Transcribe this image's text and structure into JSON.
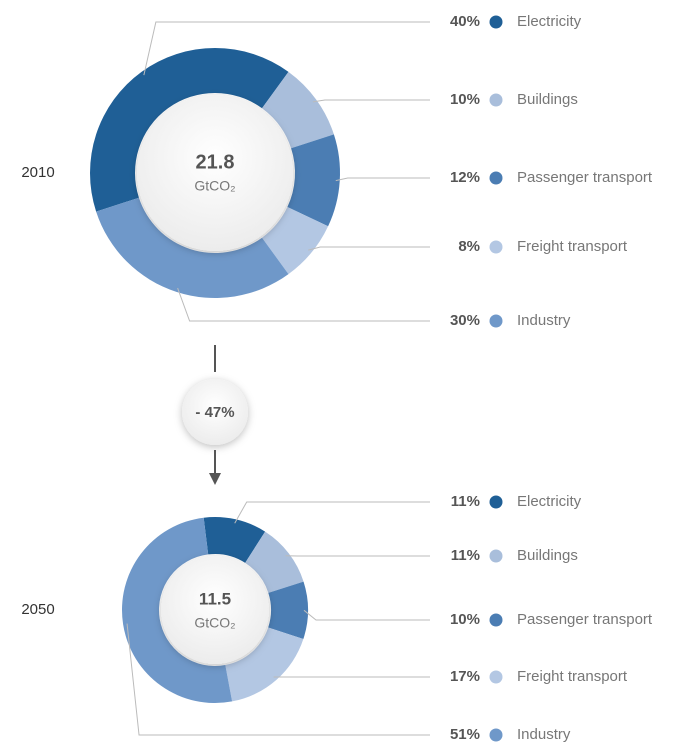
{
  "chart_data": [
    {
      "type": "donut",
      "year": "2010",
      "total": 21.8,
      "unit": "GtCO₂",
      "categories": [
        "Electricity",
        "Buildings",
        "Passenger transport",
        "Freight transport",
        "Industry"
      ],
      "values": [
        40,
        10,
        12,
        8,
        30
      ],
      "value_labels": [
        "40%",
        "10%",
        "12%",
        "8%",
        "30%"
      ],
      "colors": [
        "#1f5f96",
        "#a9bedb",
        "#4b7db3",
        "#b3c7e3",
        "#6f98c9"
      ]
    },
    {
      "type": "donut",
      "year": "2050",
      "total": 11.5,
      "unit": "GtCO₂",
      "categories": [
        "Electricity",
        "Buildings",
        "Passenger transport",
        "Freight transport",
        "Industry"
      ],
      "values": [
        11,
        11,
        10,
        17,
        51
      ],
      "value_labels": [
        "11%",
        "11%",
        "10%",
        "17%",
        "51%"
      ],
      "colors": [
        "#1f5f96",
        "#a9bedb",
        "#4b7db3",
        "#b3c7e3",
        "#6f98c9"
      ]
    }
  ],
  "change_label": "- 47%"
}
